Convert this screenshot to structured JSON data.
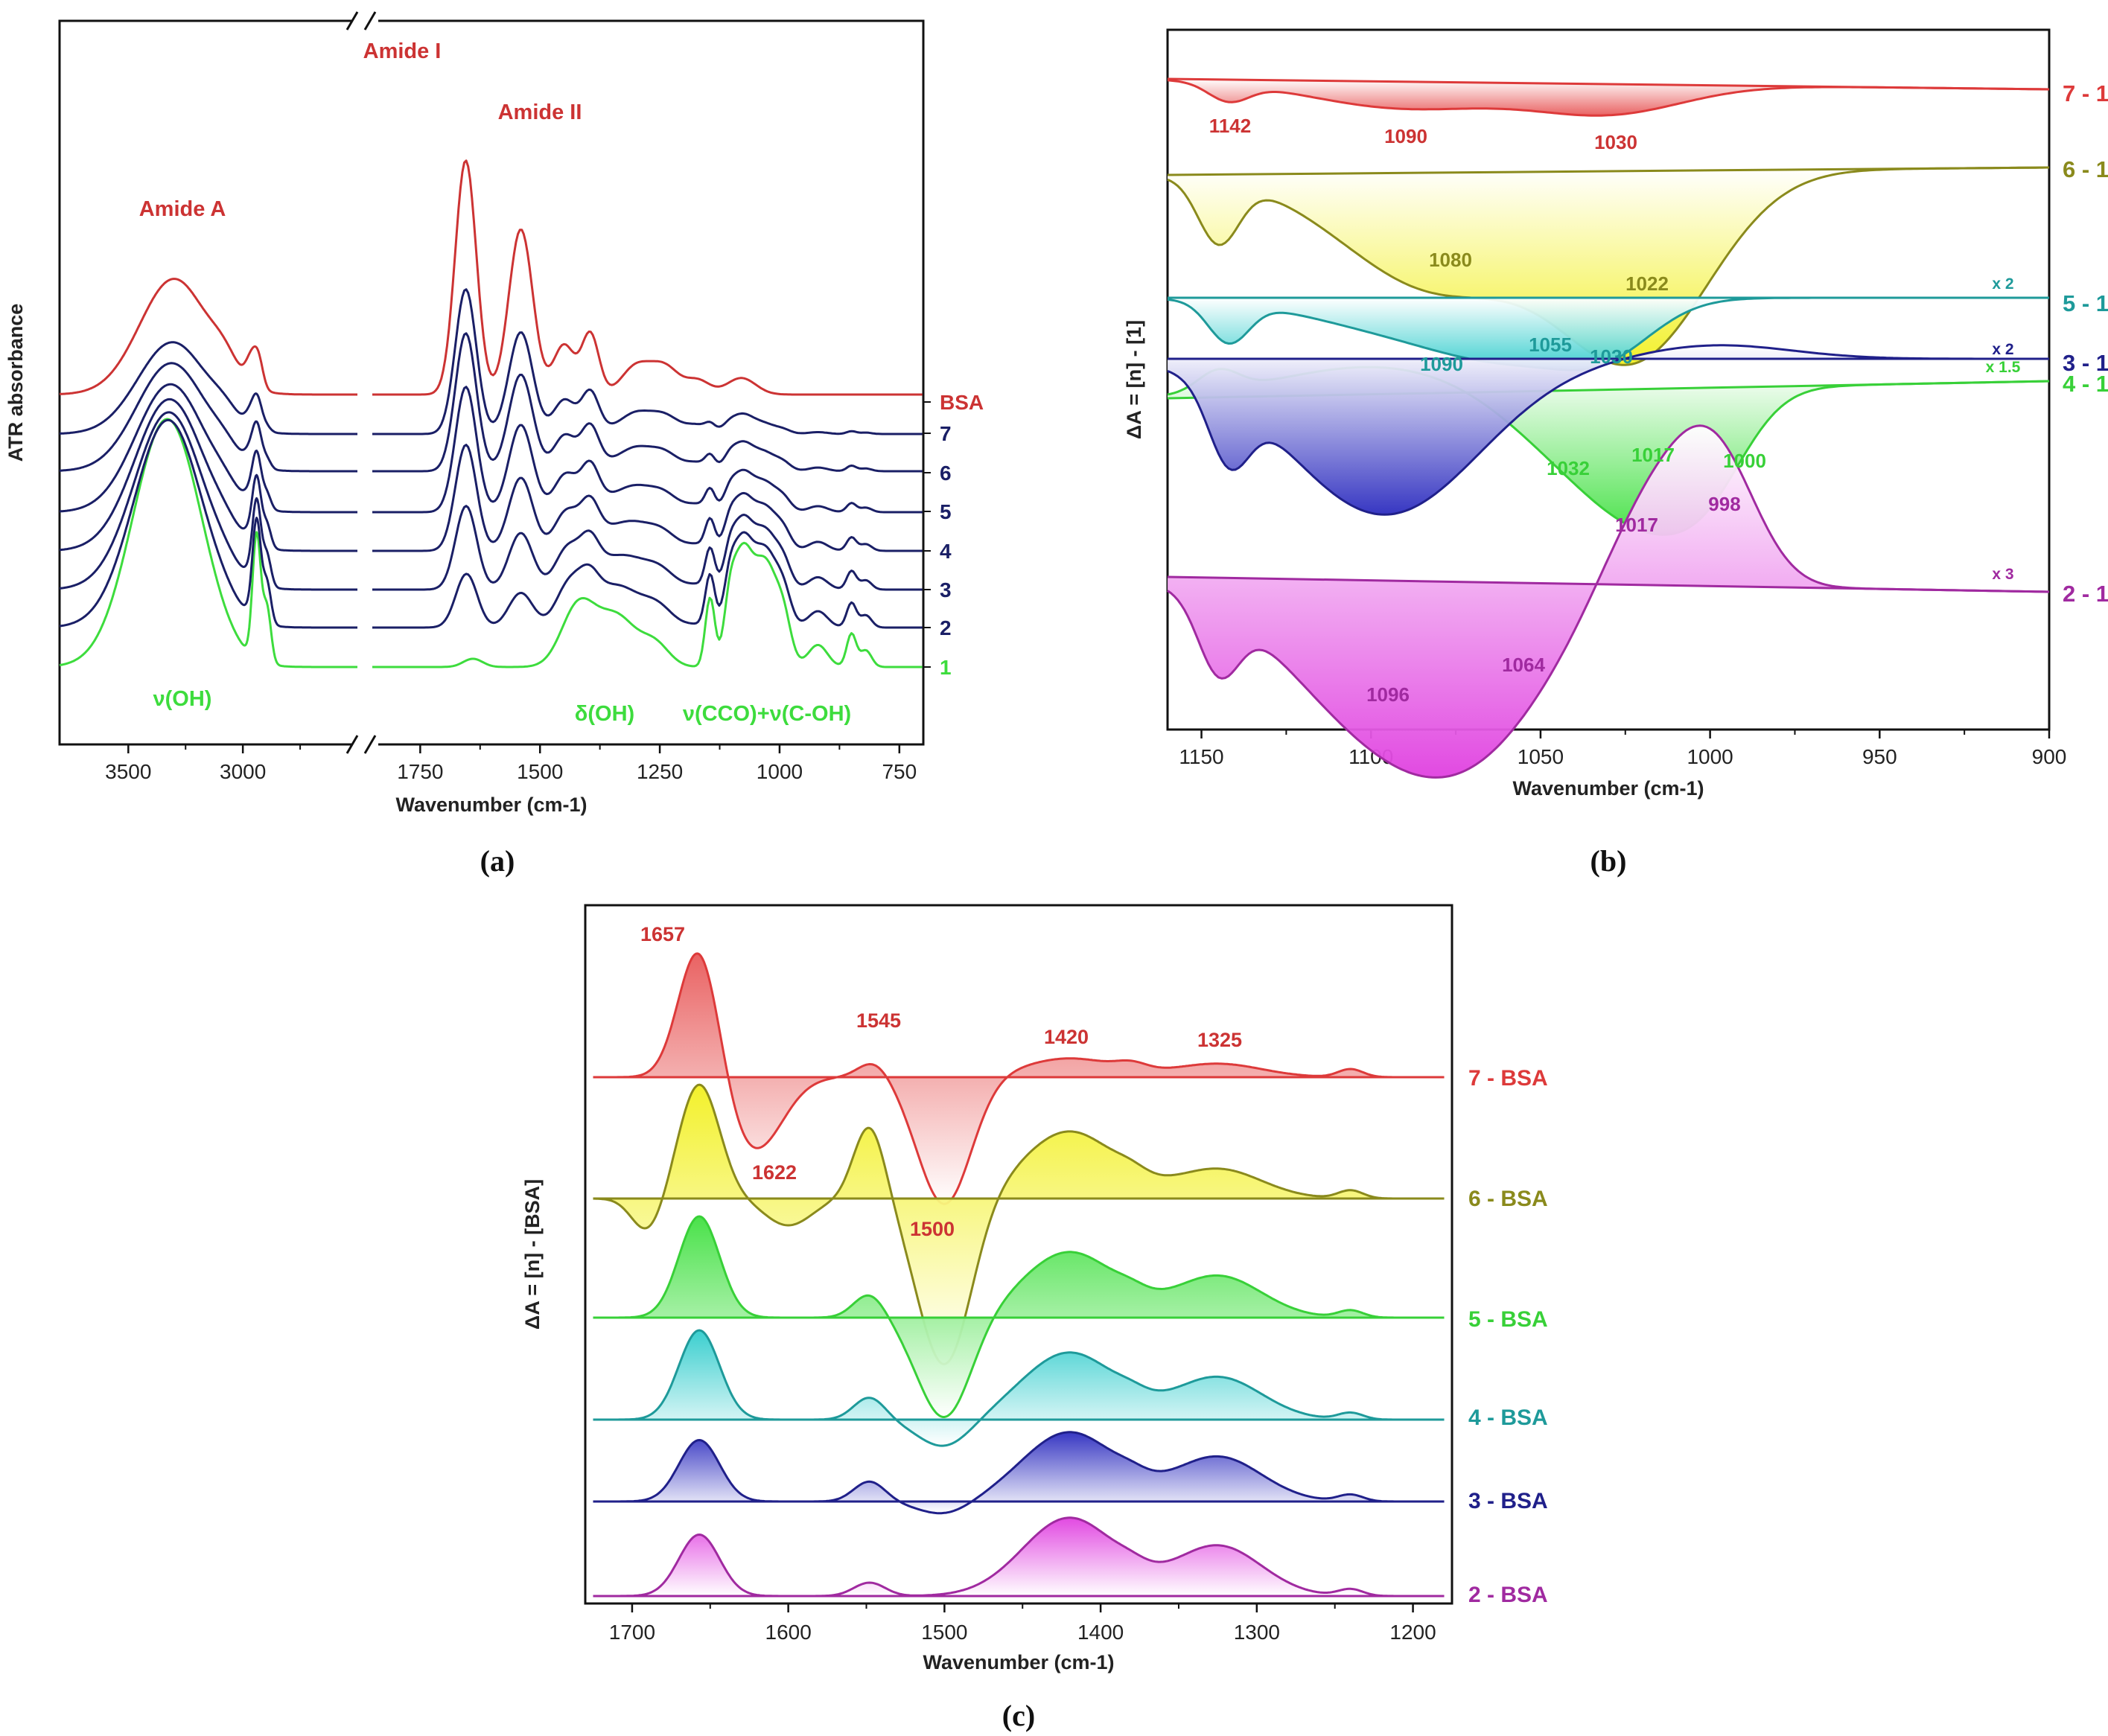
{
  "panels": {
    "a": "(a)",
    "b": "(b)",
    "c": "(c)"
  },
  "chart_data": [
    {
      "id": "a",
      "type": "line",
      "title": "",
      "xlabel": "Wavenumber (cm-1)",
      "ylabel": "ATR absorbance",
      "xlim": [
        3800,
        700
      ],
      "axis_break": [
        2500,
        1850
      ],
      "xticks": [
        3500,
        3000,
        1750,
        1500,
        1250,
        1000,
        750
      ],
      "grid": false,
      "series_labels": [
        "1",
        "2",
        "3",
        "4",
        "5",
        "6",
        "7",
        "BSA"
      ],
      "series_colors": [
        "#3ddc3d",
        "#1a1f66",
        "#1a1f66",
        "#1a1f66",
        "#1a1f66",
        "#1a1f66",
        "#1a1f66",
        "#cc3333"
      ],
      "peaks_bsa": [
        {
          "x": 3300,
          "value": 0.42
        },
        {
          "x": 2960,
          "value": 0.1
        },
        {
          "x": 1655,
          "value": 0.85
        },
        {
          "x": 1540,
          "value": 0.6
        },
        {
          "x": 1450,
          "value": 0.18
        },
        {
          "x": 1395,
          "value": 0.22
        },
        {
          "x": 1240,
          "value": 0.1
        },
        {
          "x": 1080,
          "value": 0.04
        }
      ],
      "peaks_sugar": [
        {
          "x": 3330,
          "value": 0.9
        },
        {
          "x": 2935,
          "value": 0.45
        },
        {
          "x": 1640,
          "value": 0.03
        },
        {
          "x": 1420,
          "value": 0.22
        },
        {
          "x": 1340,
          "value": 0.15
        },
        {
          "x": 1145,
          "value": 0.25
        },
        {
          "x": 1080,
          "value": 0.35
        },
        {
          "x": 1030,
          "value": 0.38
        },
        {
          "x": 850,
          "value": 0.12
        }
      ],
      "annotations": [
        {
          "text": "Amide A",
          "x": 3300,
          "color": "#cc3333"
        },
        {
          "text": "Amide I",
          "x": 1650,
          "color": "#cc3333"
        },
        {
          "text": "Amide II",
          "x": 1540,
          "color": "#cc3333"
        },
        {
          "text": "ν(OH)",
          "x": 3300,
          "color": "#3ddc3d"
        },
        {
          "text": "δ(OH)",
          "x": 1420,
          "color": "#3ddc3d"
        },
        {
          "text": "ν(CCO)+ν(C-OH)",
          "x": 1080,
          "color": "#3ddc3d"
        }
      ]
    },
    {
      "id": "b",
      "type": "area",
      "title": "",
      "xlabel": "Wavenumber (cm-1)",
      "ylabel": "ΔA = [n] - [1]",
      "xlim": [
        1160,
        900
      ],
      "xticks": [
        1150,
        1100,
        1050,
        1000,
        950,
        900
      ],
      "grid": false,
      "series": [
        {
          "name": "7 - 1",
          "color": "#dd3a3a",
          "fill": "#e85a5a",
          "scale": "",
          "peaks": [
            {
              "x": 1142,
              "value": -0.28
            },
            {
              "x": 1090,
              "value": -0.42
            },
            {
              "x": 1030,
              "value": -0.45
            }
          ]
        },
        {
          "name": "6 - 1",
          "color": "#8a8a1c",
          "fill": "#f2f020",
          "scale": "",
          "peaks": [
            {
              "x": 1145,
              "value": -0.35
            },
            {
              "x": 1080,
              "value": -0.65
            },
            {
              "x": 1022,
              "value": -1.0
            }
          ]
        },
        {
          "name": "5 - 1",
          "color": "#1e9a9a",
          "fill": "#30cccc",
          "scale": "x 2",
          "peaks": [
            {
              "x": 1142,
              "value": -0.45
            },
            {
              "x": 1090,
              "value": -0.35
            },
            {
              "x": 1055,
              "value": -0.52
            },
            {
              "x": 1030,
              "value": -0.42
            }
          ]
        },
        {
          "name": "4 - 1",
          "color": "#38d038",
          "fill": "#40e040",
          "scale": "x 1.5",
          "peaks": [
            {
              "x": 1145,
              "value": 0.22
            },
            {
              "x": 1100,
              "value": 0.3
            },
            {
              "x": 1032,
              "value": -0.95
            },
            {
              "x": 1017,
              "value": -0.55
            },
            {
              "x": 1000,
              "value": -0.7
            }
          ]
        },
        {
          "name": "3 - 1",
          "color": "#20208a",
          "fill": "#2c2cbf",
          "scale": "x 2",
          "peaks": [
            {
              "x": 1142,
              "value": -0.6
            },
            {
              "x": 1096,
              "value": -1.35
            },
            {
              "x": 998,
              "value": 0.12
            }
          ]
        },
        {
          "name": "2 - 1",
          "color": "#a02aa0",
          "fill": "#e040e0",
          "scale": "x 3",
          "peaks": [
            {
              "x": 1145,
              "value": -0.55
            },
            {
              "x": 1096,
              "value": -1.2
            },
            {
              "x": 1064,
              "value": -0.75
            },
            {
              "x": 1017,
              "value": 0.75
            },
            {
              "x": 998,
              "value": 0.95
            }
          ]
        }
      ],
      "peak_labels": [
        {
          "text": "1142",
          "x": 1142,
          "series": "7 - 1"
        },
        {
          "text": "1090",
          "x": 1090,
          "series": "7 - 1"
        },
        {
          "text": "1030",
          "x": 1030,
          "series": "7 - 1"
        },
        {
          "text": "1080",
          "x": 1080,
          "series": "6 - 1"
        },
        {
          "text": "1022",
          "x": 1022,
          "series": "6 - 1"
        },
        {
          "text": "1090",
          "x": 1090,
          "series": "5 - 1"
        },
        {
          "text": "1055",
          "x": 1055,
          "series": "5 - 1"
        },
        {
          "text": "1030",
          "x": 1030,
          "series": "5 - 1"
        },
        {
          "text": "1032",
          "x": 1032,
          "series": "4 - 1"
        },
        {
          "text": "1017",
          "x": 1017,
          "series": "4 - 1"
        },
        {
          "text": "1000",
          "x": 1000,
          "series": "4 - 1"
        },
        {
          "text": "1017",
          "x": 1017,
          "series": "2 - 1"
        },
        {
          "text": "998",
          "x": 998,
          "series": "2 - 1"
        },
        {
          "text": "1096",
          "x": 1096,
          "series": "2 - 1"
        },
        {
          "text": "1064",
          "x": 1064,
          "series": "2 - 1"
        }
      ]
    },
    {
      "id": "c",
      "type": "area",
      "title": "",
      "xlabel": "Wavenumber (cm-1)",
      "ylabel": "ΔA = [n] - [BSA]",
      "xlim": [
        1730,
        1175
      ],
      "xticks": [
        1700,
        1600,
        1500,
        1400,
        1300,
        1200
      ],
      "grid": false,
      "series": [
        {
          "name": "7 - BSA",
          "color": "#dd3a3a",
          "fill": "#e85a5a",
          "peaks": [
            {
              "x": 1657,
              "value": 1.0
            },
            {
              "x": 1622,
              "value": -0.55
            },
            {
              "x": 1545,
              "value": 0.12
            },
            {
              "x": 1500,
              "value": -0.95
            },
            {
              "x": 1420,
              "value": 0.14
            },
            {
              "x": 1325,
              "value": 0.1
            }
          ]
        },
        {
          "name": "6 - BSA",
          "color": "#8a8a1c",
          "fill": "#f2f020",
          "peaks": [
            {
              "x": 1657,
              "value": 0.85
            },
            {
              "x": 1690,
              "value": -0.25
            },
            {
              "x": 1600,
              "value": -0.2
            },
            {
              "x": 1548,
              "value": 0.55
            },
            {
              "x": 1500,
              "value": -1.25
            },
            {
              "x": 1420,
              "value": 0.5
            },
            {
              "x": 1325,
              "value": 0.22
            }
          ]
        },
        {
          "name": "5 - BSA",
          "color": "#38d038",
          "fill": "#40e040",
          "peaks": [
            {
              "x": 1657,
              "value": 0.85
            },
            {
              "x": 1548,
              "value": 0.2
            },
            {
              "x": 1500,
              "value": -0.85
            },
            {
              "x": 1420,
              "value": 0.55
            },
            {
              "x": 1325,
              "value": 0.35
            }
          ]
        },
        {
          "name": "4 - BSA",
          "color": "#1e9a9a",
          "fill": "#30cccc",
          "peaks": [
            {
              "x": 1657,
              "value": 0.8
            },
            {
              "x": 1548,
              "value": 0.2
            },
            {
              "x": 1500,
              "value": -0.25
            },
            {
              "x": 1420,
              "value": 0.6
            },
            {
              "x": 1325,
              "value": 0.38
            }
          ]
        },
        {
          "name": "3 - BSA",
          "color": "#20208a",
          "fill": "#2c2cbf",
          "peaks": [
            {
              "x": 1657,
              "value": 0.55
            },
            {
              "x": 1548,
              "value": 0.18
            },
            {
              "x": 1500,
              "value": -0.12
            },
            {
              "x": 1420,
              "value": 0.62
            },
            {
              "x": 1325,
              "value": 0.4
            }
          ]
        },
        {
          "name": "2 - BSA",
          "color": "#a02aa0",
          "fill": "#e040e0",
          "peaks": [
            {
              "x": 1657,
              "value": 0.55
            },
            {
              "x": 1548,
              "value": 0.12
            },
            {
              "x": 1420,
              "value": 0.7
            },
            {
              "x": 1325,
              "value": 0.45
            }
          ]
        }
      ],
      "peak_labels": [
        {
          "text": "1657",
          "x": 1657,
          "series": "7 - BSA"
        },
        {
          "text": "1545",
          "x": 1545,
          "series": "7 - BSA"
        },
        {
          "text": "1420",
          "x": 1420,
          "series": "7 - BSA"
        },
        {
          "text": "1325",
          "x": 1325,
          "series": "7 - BSA"
        },
        {
          "text": "1622",
          "x": 1622,
          "series": "7 - BSA"
        },
        {
          "text": "1500",
          "x": 1500,
          "series": "7 - BSA"
        }
      ]
    }
  ]
}
